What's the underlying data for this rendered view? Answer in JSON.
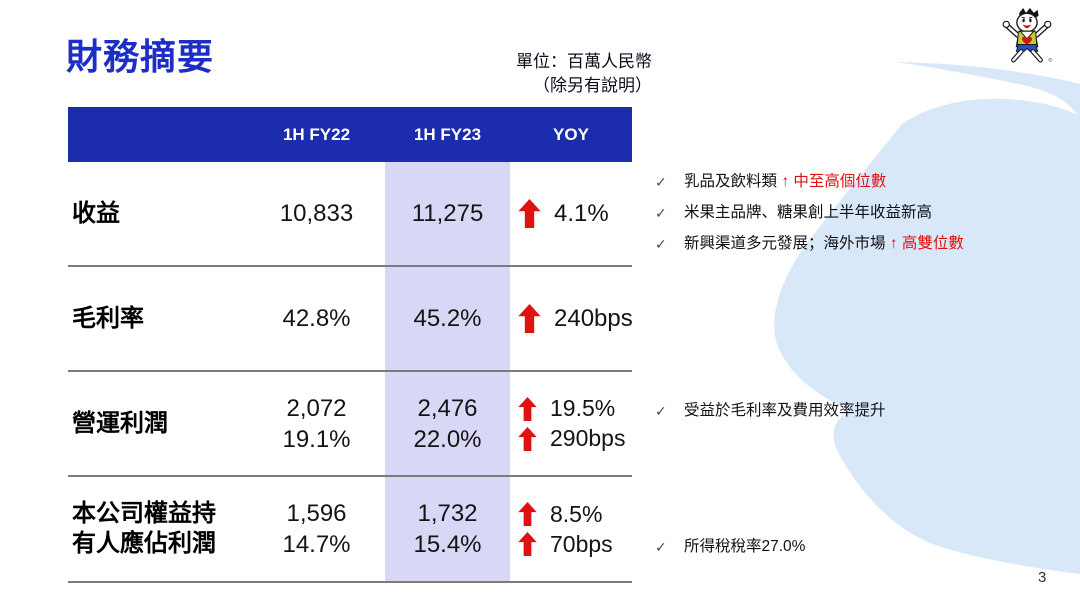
{
  "page": {
    "title": "財務摘要",
    "unit_note_line1": "單位：百萬人民幣",
    "unit_note_line2": "（除另有說明）",
    "page_number": "3"
  },
  "colors": {
    "title_blue": "#1d2ec6",
    "header_blue": "#1b2dad",
    "highlight_lavender": "#d8d8f6",
    "arrow_red": "#e01111",
    "swoosh_light_blue": "#d9e8f8",
    "divider_gray": "#7b7b7b"
  },
  "icons": {
    "check_glyph": "✓",
    "up_arrow_glyph": "↑",
    "logo_name": "wantwant-mascot"
  },
  "table": {
    "columns": [
      "",
      "1H FY22",
      "1H FY23",
      "YOY"
    ],
    "rows": [
      {
        "label_lines": [
          "收益"
        ],
        "fy22_lines": [
          "10,833"
        ],
        "fy23_lines": [
          "11,275"
        ],
        "yoy_lines": [
          "4.1%"
        ]
      },
      {
        "label_lines": [
          "毛利率"
        ],
        "fy22_lines": [
          "42.8%"
        ],
        "fy23_lines": [
          "45.2%"
        ],
        "yoy_lines": [
          "240bps"
        ]
      },
      {
        "label_lines": [
          "營運利潤"
        ],
        "fy22_lines": [
          "2,072",
          "19.1%"
        ],
        "fy23_lines": [
          "2,476",
          "22.0%"
        ],
        "yoy_lines": [
          "19.5%",
          "290bps"
        ]
      },
      {
        "label_lines": [
          "本公司權益持",
          "有人應佔利潤"
        ],
        "fy22_lines": [
          "1,596",
          "14.7%"
        ],
        "fy23_lines": [
          "1,732",
          "15.4%"
        ],
        "yoy_lines": [
          "8.5%",
          "70bps"
        ]
      }
    ]
  },
  "annotations": {
    "revenue": {
      "items": [
        {
          "parts": [
            {
              "text": "乳品及飲料類 "
            },
            {
              "text": "↑ 中至高個位數",
              "red": true
            }
          ]
        },
        {
          "parts": [
            {
              "text": "米果主品牌、糖果創上半年收益新高"
            }
          ]
        },
        {
          "parts": [
            {
              "text": "新興渠道多元發展；海外市場 "
            },
            {
              "text": "↑ 高雙位數",
              "red": true
            }
          ]
        }
      ]
    },
    "operating_profit": {
      "items": [
        {
          "parts": [
            {
              "text": "受益於毛利率及費用效率提升"
            }
          ]
        }
      ]
    },
    "net_profit": {
      "items": [
        {
          "parts": [
            {
              "text": "所得稅稅率27.0%"
            }
          ]
        }
      ]
    }
  }
}
